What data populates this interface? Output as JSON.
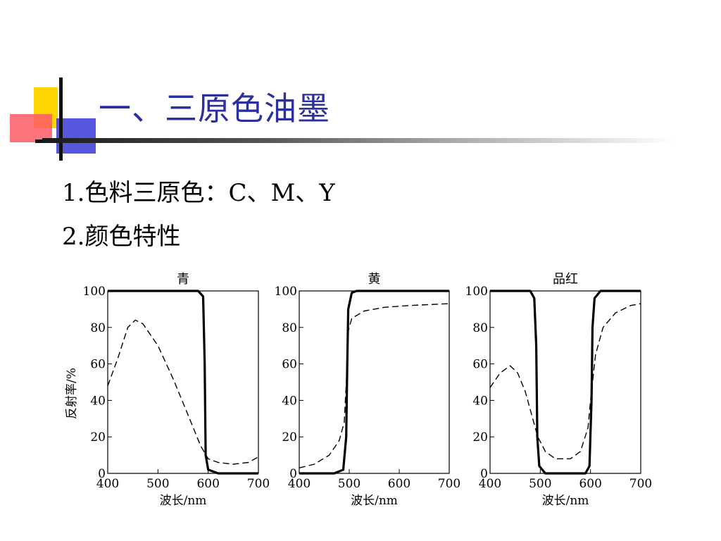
{
  "slide": {
    "title": "一、三原色油墨",
    "bullets": [
      "1.色料三原色：C、M、Y",
      "2.颜色特性"
    ]
  },
  "chart_data": [
    {
      "type": "line",
      "title": "青",
      "xlabel": "波长/nm",
      "ylabel": "反射率/%",
      "xlim": [
        400,
        700
      ],
      "ylim": [
        0,
        100
      ],
      "xticks": [
        400,
        500,
        600,
        700
      ],
      "yticks": [
        0,
        20,
        40,
        60,
        80,
        100
      ],
      "grid": false,
      "series": [
        {
          "style": "solid",
          "points": [
            [
              400,
              100
            ],
            [
              580,
              100
            ],
            [
              590,
              97
            ],
            [
              593,
              60
            ],
            [
              595,
              10
            ],
            [
              600,
              2
            ],
            [
              620,
              0
            ],
            [
              700,
              0
            ]
          ]
        },
        {
          "style": "dashed",
          "points": [
            [
              400,
              48
            ],
            [
              420,
              63
            ],
            [
              440,
              80
            ],
            [
              455,
              84
            ],
            [
              470,
              82
            ],
            [
              500,
              70
            ],
            [
              530,
              52
            ],
            [
              560,
              32
            ],
            [
              585,
              15
            ],
            [
              600,
              8
            ],
            [
              620,
              6
            ],
            [
              650,
              5
            ],
            [
              680,
              6
            ],
            [
              700,
              9
            ]
          ]
        }
      ]
    },
    {
      "type": "line",
      "title": "黄",
      "xlabel": "波长/nm",
      "ylabel": "",
      "xlim": [
        400,
        700
      ],
      "ylim": [
        0,
        100
      ],
      "xticks": [
        400,
        500,
        600,
        700
      ],
      "yticks": [
        0,
        20,
        40,
        60,
        80,
        100
      ],
      "grid": false,
      "series": [
        {
          "style": "solid",
          "points": [
            [
              400,
              0
            ],
            [
              470,
              0
            ],
            [
              488,
              2
            ],
            [
              494,
              20
            ],
            [
              496,
              60
            ],
            [
              498,
              90
            ],
            [
              505,
              99
            ],
            [
              515,
              100
            ],
            [
              700,
              100
            ]
          ]
        },
        {
          "style": "dashed",
          "points": [
            [
              400,
              3
            ],
            [
              430,
              5
            ],
            [
              460,
              10
            ],
            [
              480,
              18
            ],
            [
              490,
              28
            ],
            [
              496,
              60
            ],
            [
              498,
              78
            ],
            [
              505,
              85
            ],
            [
              530,
              89
            ],
            [
              570,
              91
            ],
            [
              620,
              92
            ],
            [
              700,
              93
            ]
          ]
        }
      ]
    },
    {
      "type": "line",
      "title": "品红",
      "xlabel": "波长/nm",
      "ylabel": "",
      "xlim": [
        400,
        700
      ],
      "ylim": [
        0,
        100
      ],
      "xticks": [
        400,
        500,
        600,
        700
      ],
      "yticks": [
        0,
        20,
        40,
        60,
        80,
        100
      ],
      "grid": false,
      "series": [
        {
          "style": "solid",
          "points": [
            [
              400,
              100
            ],
            [
              480,
              100
            ],
            [
              488,
              96
            ],
            [
              492,
              70
            ],
            [
              494,
              20
            ],
            [
              498,
              4
            ],
            [
              510,
              0
            ],
            [
              590,
              0
            ],
            [
              598,
              4
            ],
            [
              602,
              40
            ],
            [
              604,
              80
            ],
            [
              608,
              96
            ],
            [
              620,
              100
            ],
            [
              700,
              100
            ]
          ]
        },
        {
          "style": "dashed",
          "points": [
            [
              400,
              47
            ],
            [
              420,
              55
            ],
            [
              440,
              59
            ],
            [
              455,
              55
            ],
            [
              470,
              45
            ],
            [
              485,
              30
            ],
            [
              495,
              20
            ],
            [
              510,
              12
            ],
            [
              530,
              8
            ],
            [
              560,
              8
            ],
            [
              580,
              12
            ],
            [
              595,
              25
            ],
            [
              600,
              40
            ],
            [
              610,
              65
            ],
            [
              625,
              80
            ],
            [
              650,
              88
            ],
            [
              680,
              92
            ],
            [
              700,
              93
            ]
          ]
        }
      ]
    }
  ]
}
